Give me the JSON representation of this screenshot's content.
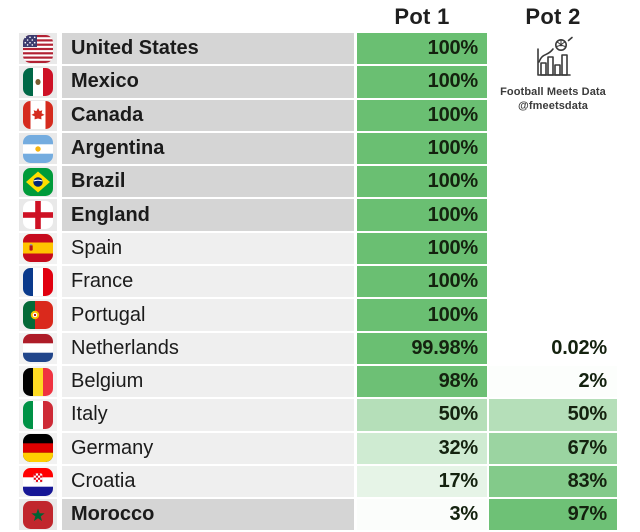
{
  "header": {
    "pot1": "Pot 1",
    "pot2": "Pot 2"
  },
  "branding": {
    "icon": "bar-chart-football-icon",
    "line1": "Football Meets Data",
    "line2": "@fmeetsdata"
  },
  "colors": {
    "cell_green_max": "#6abf72",
    "locked_row_bg": "#d5d5d5",
    "normal_row_bg": "#efefef",
    "locked_flag_bg": "#e9e9e9",
    "normal_flag_bg": "#f2f2f2",
    "text_dark": "#1b1b1b",
    "branding_gray": "#3b3b3b"
  },
  "chart_data": {
    "type": "heatmap",
    "title": "",
    "columns": [
      "Pot 1",
      "Pot 2"
    ],
    "color_scale": {
      "min_color": "#ffffff",
      "max_color": "#6abf72",
      "domain": [
        0,
        100
      ]
    },
    "legend_position": "none",
    "rows": [
      {
        "team": "United States",
        "flag": "us",
        "pot1": 100,
        "pot2": null,
        "locked": true
      },
      {
        "team": "Mexico",
        "flag": "mx",
        "pot1": 100,
        "pot2": null,
        "locked": true
      },
      {
        "team": "Canada",
        "flag": "ca",
        "pot1": 100,
        "pot2": null,
        "locked": true
      },
      {
        "team": "Argentina",
        "flag": "ar",
        "pot1": 100,
        "pot2": null,
        "locked": true
      },
      {
        "team": "Brazil",
        "flag": "br",
        "pot1": 100,
        "pot2": null,
        "locked": true
      },
      {
        "team": "England",
        "flag": "eng",
        "pot1": 100,
        "pot2": null,
        "locked": true
      },
      {
        "team": "Spain",
        "flag": "es",
        "pot1": 100,
        "pot2": null,
        "locked": false
      },
      {
        "team": "France",
        "flag": "fr",
        "pot1": 100,
        "pot2": null,
        "locked": false
      },
      {
        "team": "Portugal",
        "flag": "pt",
        "pot1": 100,
        "pot2": null,
        "locked": false
      },
      {
        "team": "Netherlands",
        "flag": "nl",
        "pot1": 99.98,
        "pot2": 0.02,
        "locked": false
      },
      {
        "team": "Belgium",
        "flag": "be",
        "pot1": 98,
        "pot2": 2,
        "locked": false
      },
      {
        "team": "Italy",
        "flag": "it",
        "pot1": 50,
        "pot2": 50,
        "locked": false
      },
      {
        "team": "Germany",
        "flag": "de",
        "pot1": 32,
        "pot2": 67,
        "locked": false
      },
      {
        "team": "Croatia",
        "flag": "hr",
        "pot1": 17,
        "pot2": 83,
        "locked": false
      },
      {
        "team": "Morocco",
        "flag": "ma",
        "pot1": 3,
        "pot2": 97,
        "locked": true
      }
    ]
  }
}
